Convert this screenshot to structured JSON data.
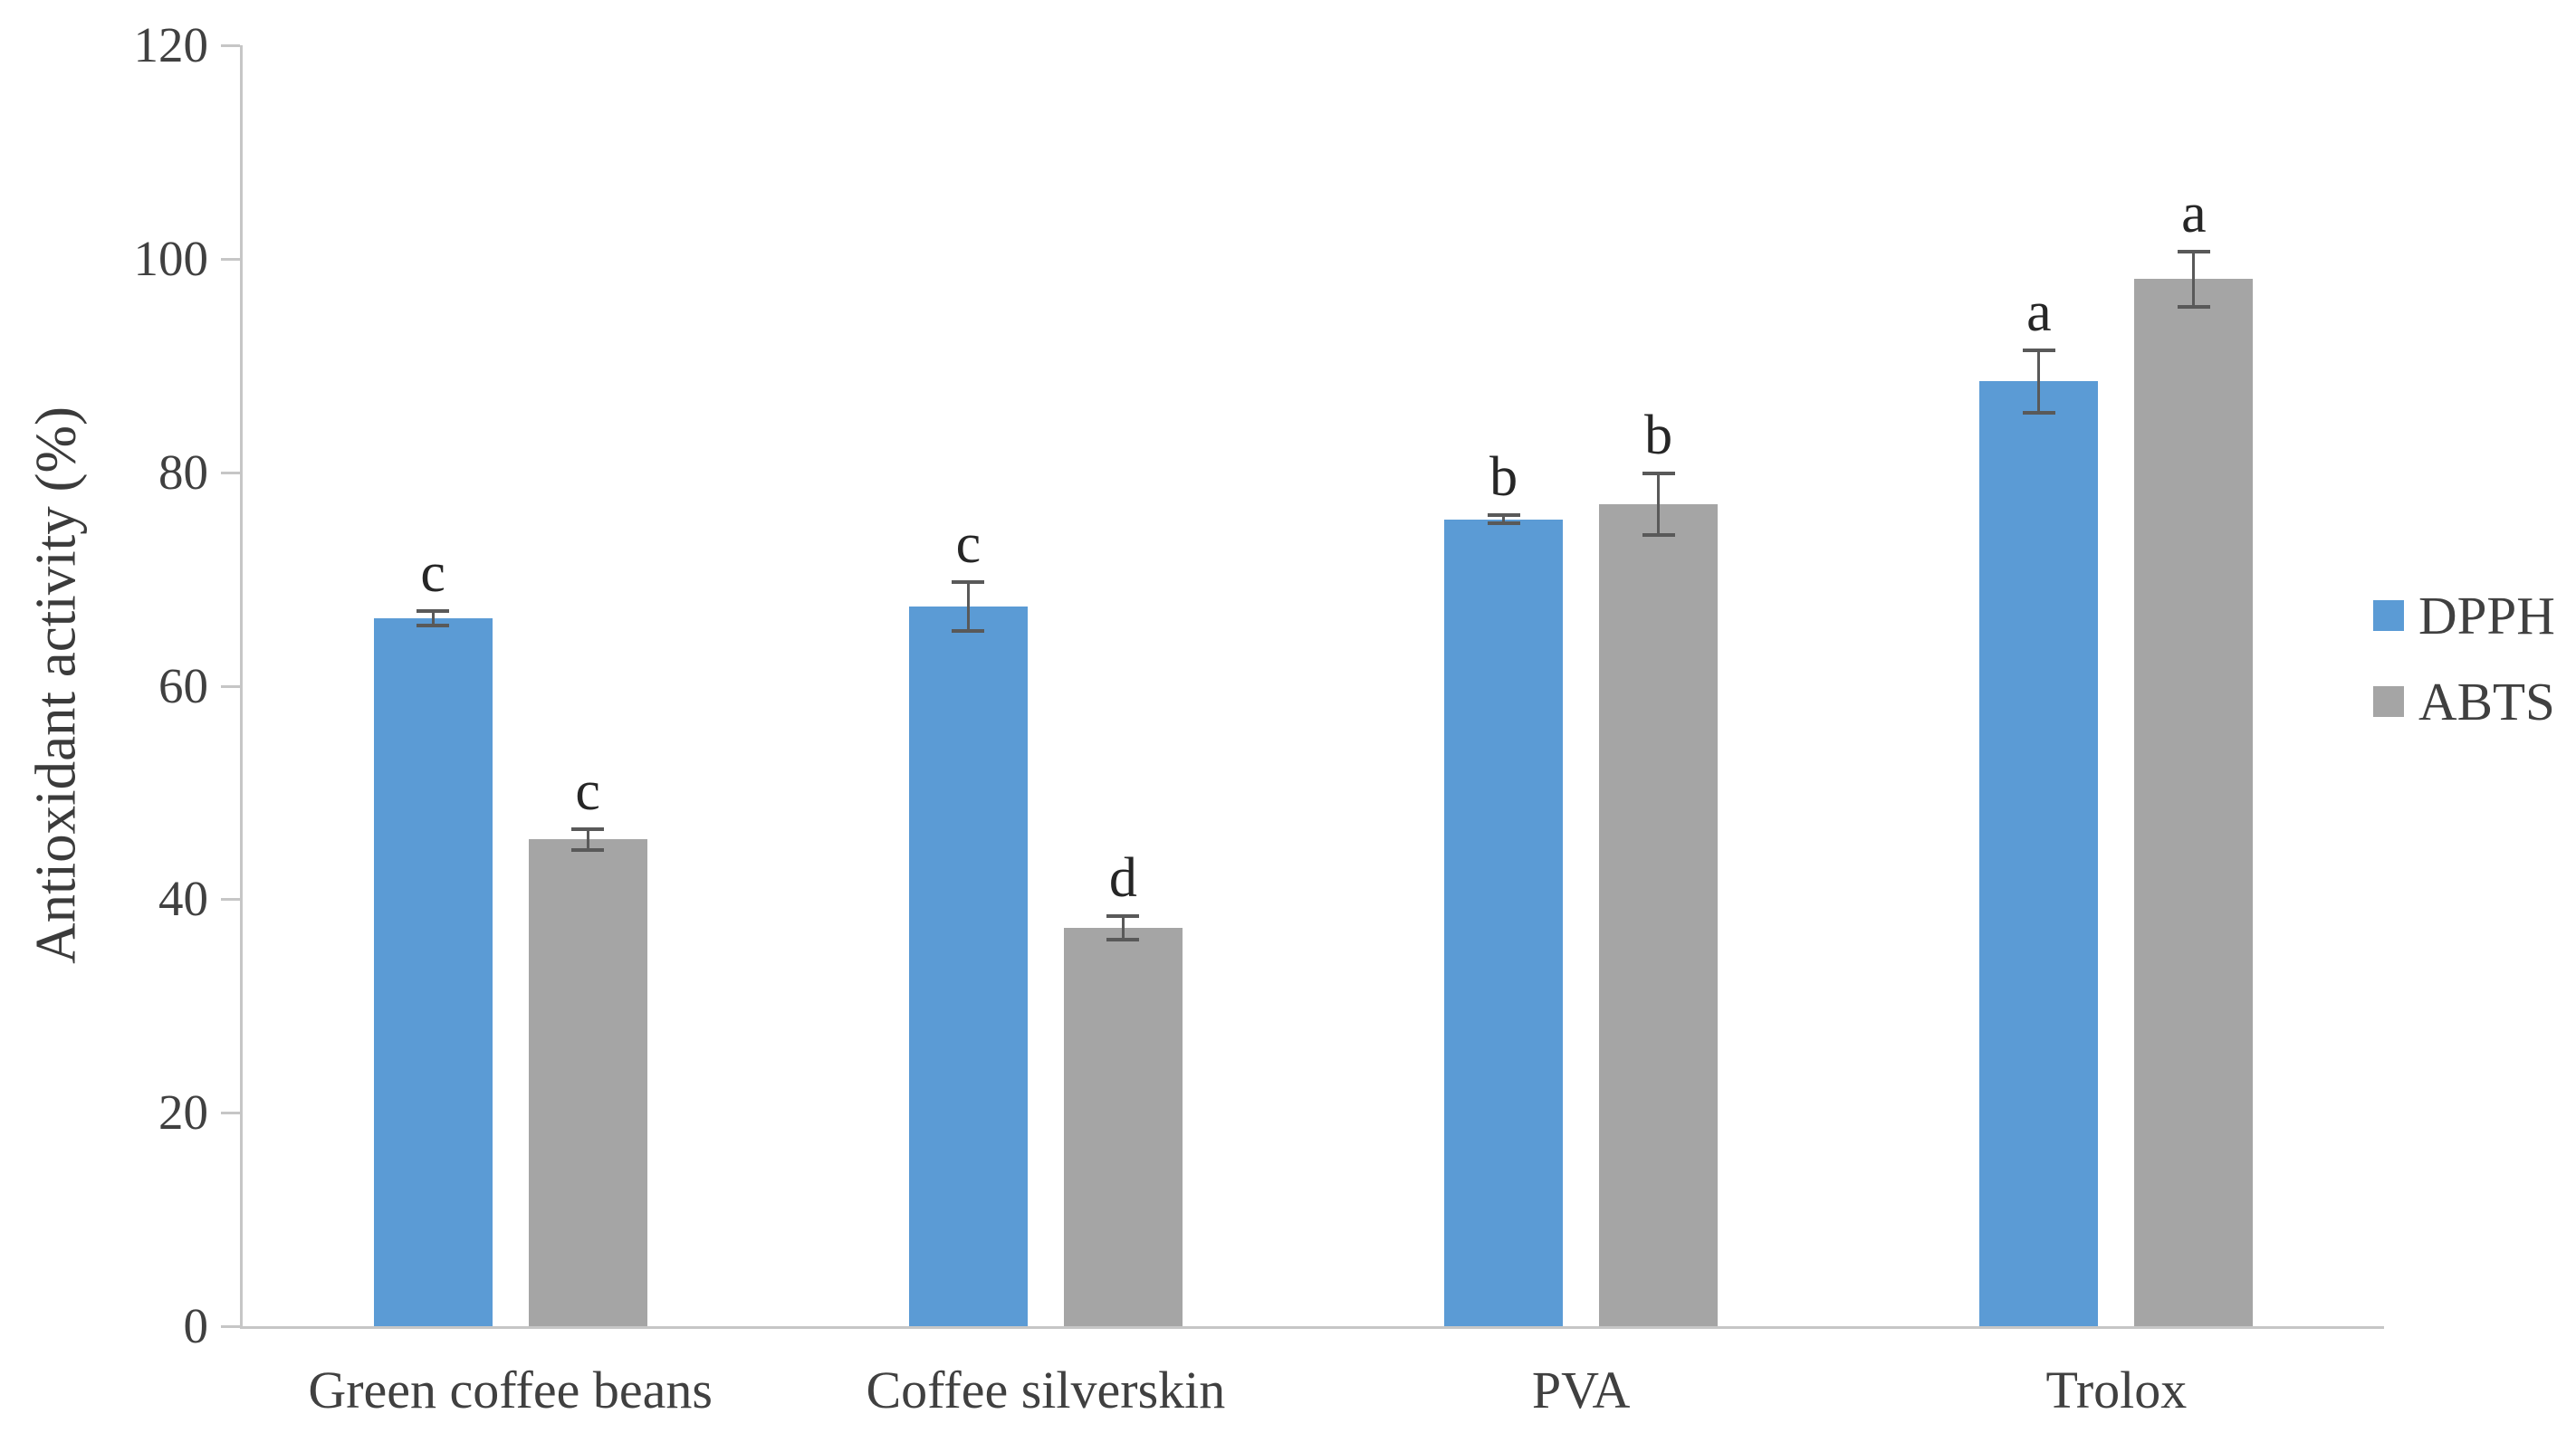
{
  "chart_data": {
    "type": "bar",
    "title": "",
    "ylabel": "Antioxidant activity (%)",
    "xlabel": "",
    "ylim": [
      0,
      120
    ],
    "ytick_step": 20,
    "yticks": [
      0,
      20,
      40,
      60,
      80,
      100,
      120
    ],
    "ytick_labels": [
      "0",
      "20",
      "40",
      "60",
      "80",
      "100",
      "120"
    ],
    "grid": false,
    "legend_position": "right",
    "categories": [
      "Green coffee beans",
      "Coffee silverskin",
      "PVA",
      "Trolox"
    ],
    "series": [
      {
        "name": "DPPH",
        "color": "#5B9BD5",
        "values": [
          66.3,
          67.4,
          75.6,
          88.5
        ],
        "errors": [
          0.7,
          2.3,
          0.4,
          2.9
        ],
        "letters": [
          "c",
          "c",
          "b",
          "a"
        ]
      },
      {
        "name": "ABTS",
        "color": "#A5A5A5",
        "values": [
          45.6,
          37.3,
          77.0,
          98.1
        ],
        "errors": [
          1.0,
          1.1,
          2.9,
          2.6
        ],
        "letters": [
          "c",
          "d",
          "b",
          "a"
        ]
      }
    ],
    "error_bar_color": "#595959",
    "axis_color": "#c6c6c6",
    "text_color": "#404040"
  }
}
